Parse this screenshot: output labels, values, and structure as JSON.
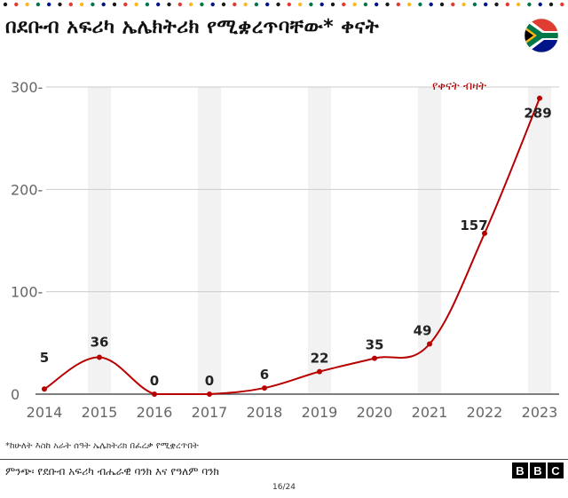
{
  "header": {
    "title": "በደቡብ አፍሪካ ኤሌክትሪክ የሚቋረጥባቸው* ቀናት"
  },
  "flag": {
    "icon": "south-africa-flag-icon"
  },
  "chart_data": {
    "type": "line",
    "x": [
      "2014",
      "2015",
      "2016",
      "2017",
      "2018",
      "2019",
      "2020",
      "2021",
      "2022",
      "2023"
    ],
    "series": [
      {
        "name": "",
        "values": [
          5,
          36,
          0,
          0,
          6,
          22,
          35,
          49,
          157,
          289
        ],
        "color": "#b80000"
      }
    ],
    "data_labels": [
      "5",
      "36",
      "0",
      "0",
      "6",
      "22",
      "35",
      "49",
      "157",
      "289"
    ],
    "y_ticks": [
      "0",
      "100",
      "200",
      "300"
    ],
    "ylim": [
      0,
      300
    ],
    "annotation": "የቀናት ብዛት",
    "grid": true,
    "xlabel": "",
    "ylabel": ""
  },
  "footnote": "*ከሁለት እስከ አራት ሰዓት ኤሌክትሪክ በፈረቃ የሚቋረጥበት",
  "source": "ምንጭ፡ የደቡብ አፍሪካ ብሔራዊ ባንክ እና የዓለም ባንክ",
  "branding": {
    "letters": [
      "B",
      "B",
      "C"
    ]
  },
  "page": {
    "number": "16/24"
  },
  "colors": {
    "line": "#b80000",
    "grid": "#cccccc",
    "axis_text": "#666666",
    "band": "#f2f2f2"
  }
}
